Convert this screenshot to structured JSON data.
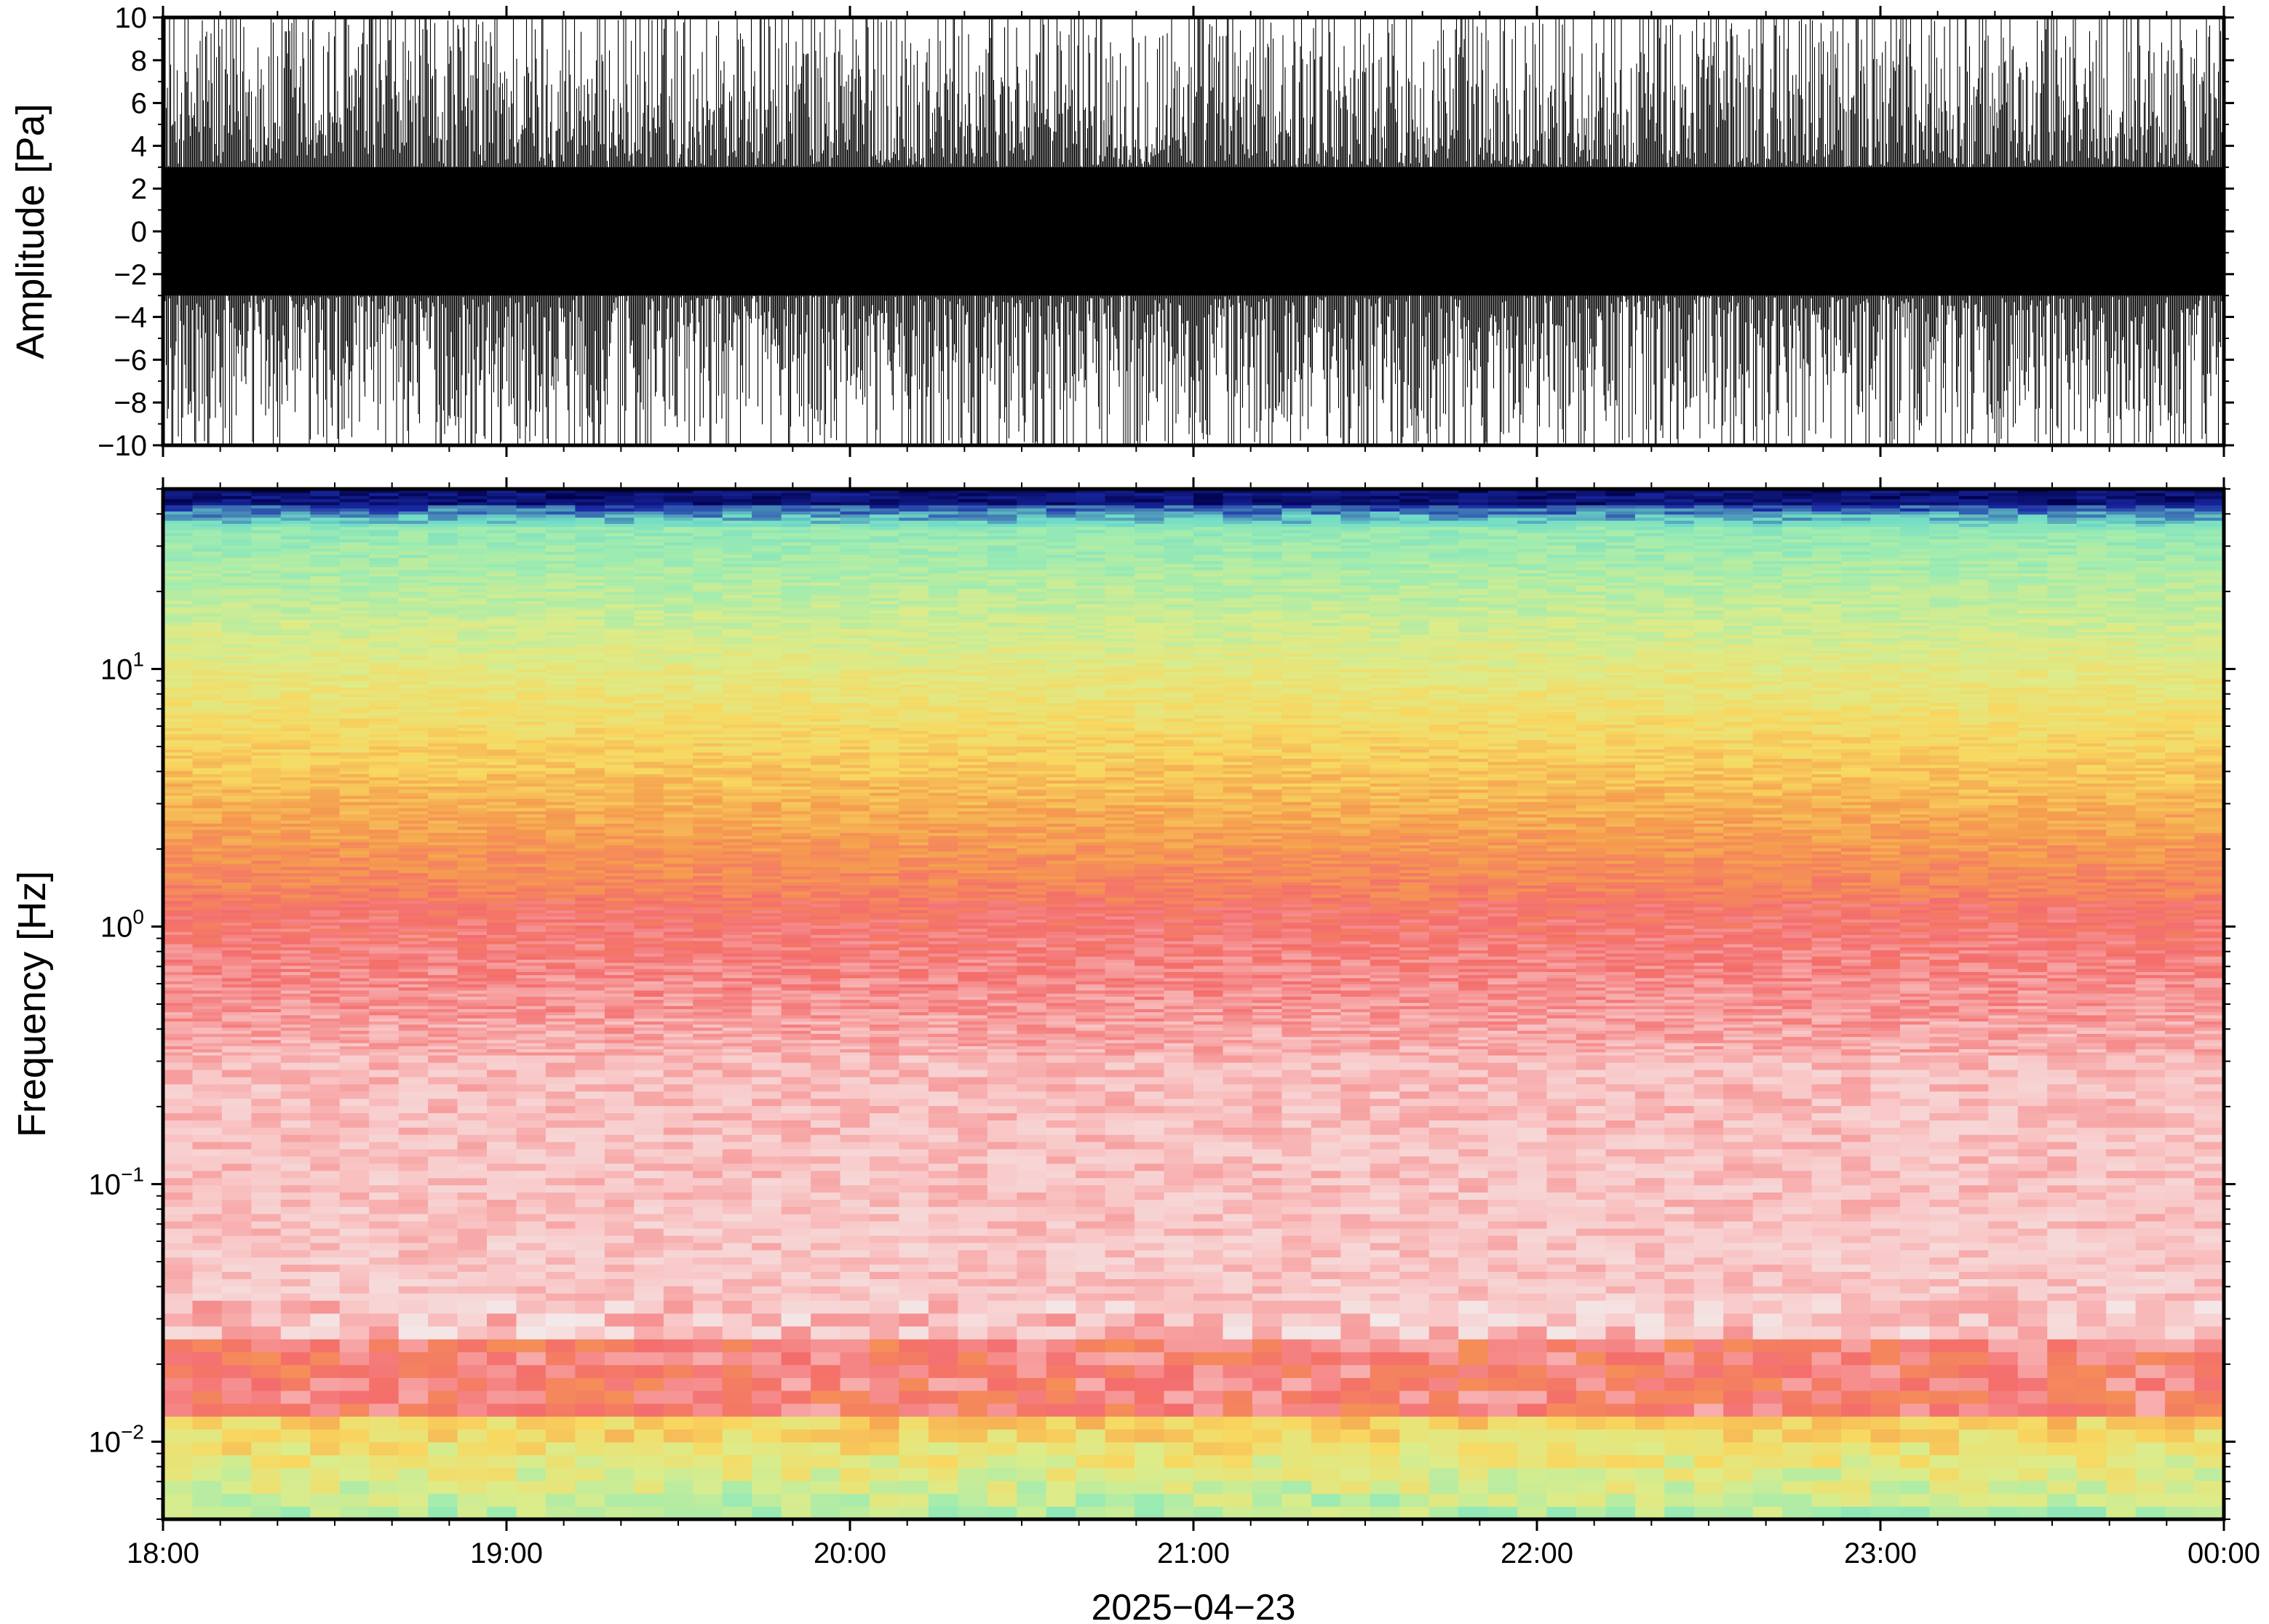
{
  "chart_data": [
    {
      "type": "line",
      "title": "",
      "xlabel": "",
      "ylabel": "Amplitude [Pa]",
      "ylim": [
        -10,
        10
      ],
      "y_ticks": [
        {
          "value": 10,
          "label": "10"
        },
        {
          "value": 8,
          "label": "8"
        },
        {
          "value": 6,
          "label": "6"
        },
        {
          "value": 4,
          "label": "4"
        },
        {
          "value": 2,
          "label": "2"
        },
        {
          "value": 0,
          "label": "0"
        },
        {
          "value": -2,
          "label": "−2"
        },
        {
          "value": -4,
          "label": "−4"
        },
        {
          "value": -6,
          "label": "−6"
        },
        {
          "value": -8,
          "label": "−8"
        },
        {
          "value": -10,
          "label": "−10"
        }
      ],
      "xlim": [
        "2025-04-23 18:00",
        "2025-04-24 00:00"
      ],
      "series_color": "#000000",
      "envelope_note_values": {
        "core_band": [
          -3,
          3
        ],
        "peaks_reach": [
          -10,
          10
        ]
      },
      "grid": false
    },
    {
      "type": "heatmap",
      "title": "",
      "ylabel": "Frequency [Hz]",
      "yscale": "log",
      "ylim": [
        0.005,
        50
      ],
      "y_ticks": [
        {
          "value": 10,
          "base": "10",
          "exp": "1"
        },
        {
          "value": 1,
          "base": "10",
          "exp": "0"
        },
        {
          "value": 0.1,
          "base": "10",
          "exp": "−1"
        },
        {
          "value": 0.01,
          "base": "10",
          "exp": "−2"
        }
      ],
      "xlim": [
        "2025-04-23 18:00",
        "2025-04-24 00:00"
      ],
      "x_ticks": [
        "18:00",
        "19:00",
        "20:00",
        "21:00",
        "22:00",
        "23:00",
        "00:00"
      ],
      "xlabel": "2025−04−23",
      "colormap": [
        "#f2f2f2",
        "#f9c6c6",
        "#f46d6d",
        "#f59d4e",
        "#f8d860",
        "#dcec8a",
        "#a0ecb0",
        "#6fdcc8",
        "#1a2aa6",
        "#00004a"
      ],
      "grid": false
    }
  ]
}
